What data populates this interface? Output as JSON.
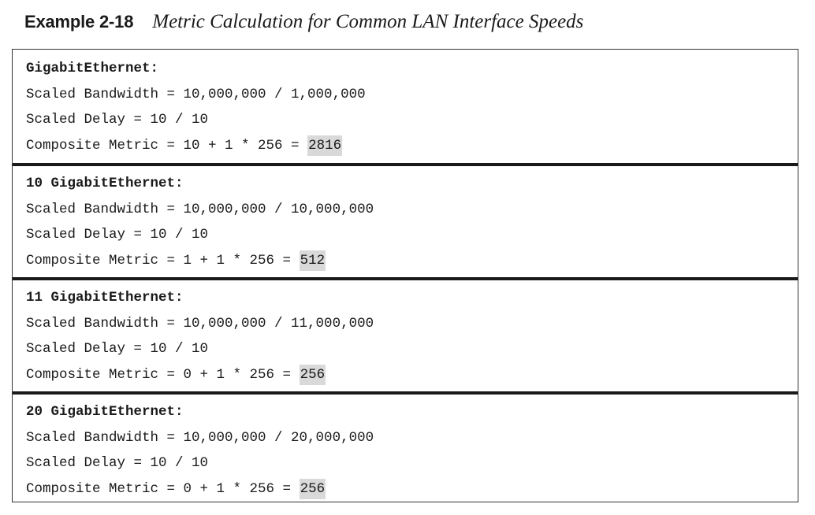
{
  "caption": {
    "label": "Example 2-18",
    "title": "Metric Calculation for Common LAN Interface Speeds"
  },
  "blocks": [
    {
      "header": "GigabitEthernet:",
      "bandwidth": "Scaled Bandwidth = 10,000,000 / 1,000,000",
      "delay": "Scaled Delay = 10 / 10",
      "metric_prefix": "Composite Metric = 10 + 1 * 256 = ",
      "metric_value": "2816"
    },
    {
      "header": "10 GigabitEthernet:",
      "bandwidth": "Scaled Bandwidth = 10,000,000 / 10,000,000",
      "delay": "Scaled Delay = 10 / 10",
      "metric_prefix": "Composite Metric = 1 + 1 * 256 = ",
      "metric_value": "512"
    },
    {
      "header": "11 GigabitEthernet:",
      "bandwidth": "Scaled Bandwidth = 10,000,000 / 11,000,000",
      "delay": "Scaled Delay = 10 / 10",
      "metric_prefix": "Composite Metric = 0 + 1 * 256 = ",
      "metric_value": "256"
    },
    {
      "header": "20 GigabitEthernet:",
      "bandwidth": "Scaled Bandwidth = 10,000,000 / 20,000,000",
      "delay": "Scaled Delay = 10 / 10",
      "metric_prefix": "Composite Metric = 0 + 1 * 256 = ",
      "metric_value": "256"
    }
  ]
}
